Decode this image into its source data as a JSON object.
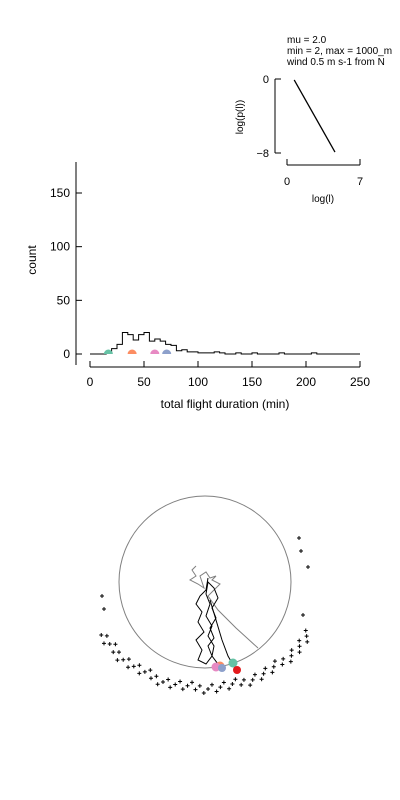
{
  "chart_data": [
    {
      "type": "line",
      "panel": "inset",
      "annotation_lines": [
        "mu = 2.0",
        "min = 2, max = 1000_m",
        "wind 0.5 m s-1 from N"
      ],
      "xlabel": "log(l)",
      "ylabel": "log(p(l))",
      "xlim": [
        0,
        7
      ],
      "ylim": [
        -8,
        0
      ],
      "xticks": [
        "0",
        "7"
      ],
      "yticks": [
        "0",
        "−8"
      ],
      "x": [
        0.69,
        4.6
      ],
      "y": [
        -0.1,
        -7.9
      ],
      "color": "#000000"
    },
    {
      "type": "line",
      "panel": "histogram",
      "style": "step",
      "xlabel": "total flight duration (min)",
      "ylabel": "count",
      "xlim": [
        0,
        250
      ],
      "ylim": [
        0,
        180
      ],
      "xticks": [
        "0",
        "50",
        "100",
        "150",
        "200",
        "250"
      ],
      "yticks": [
        "0",
        "50",
        "100",
        "150"
      ],
      "bin_width": 5,
      "bin_edges_start": 0,
      "counts": [
        0,
        0,
        0,
        2,
        5,
        9,
        20,
        18,
        13,
        18,
        20,
        12,
        14,
        12,
        9,
        8,
        3,
        4,
        2,
        2,
        1,
        1,
        1,
        2,
        1,
        0,
        0,
        1,
        0,
        0,
        1,
        0,
        0,
        0,
        0,
        1,
        0,
        0,
        0,
        0,
        0,
        1,
        0,
        0,
        0,
        0,
        0,
        0,
        0,
        0
      ],
      "markers": [
        {
          "x": 17,
          "y": 0,
          "color": "#66c2a5"
        },
        {
          "x": 39,
          "y": 0,
          "color": "#fc8d62"
        },
        {
          "x": 60,
          "y": 0,
          "color": "#e78ac3"
        },
        {
          "x": 71,
          "y": 0,
          "color": "#8da0cb"
        }
      ],
      "line_color": "#000000"
    },
    {
      "type": "scatter",
      "panel": "trajectory",
      "circle_color": "#808080",
      "path_color": "#000000",
      "inner_path_color": "#808080",
      "endpoint_colors": [
        "#66c2a5",
        "#fc8d62",
        "#e78ac3",
        "#8da0cb",
        "#e41a1c"
      ],
      "cross_color": "#000000"
    }
  ]
}
